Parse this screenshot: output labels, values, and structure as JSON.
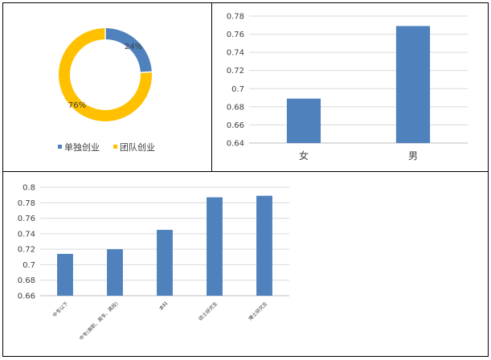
{
  "colors": {
    "blue": "#4F81BD",
    "yellow": "#FFC000",
    "grid": "#d9d9d9",
    "axis": "#bfbfbf",
    "text": "#404040"
  },
  "chart_data": [
    {
      "type": "pie",
      "variant": "donut",
      "categories": [
        "单独创业",
        "团队创业"
      ],
      "values": [
        24,
        76
      ],
      "labels": [
        "24%",
        "76%"
      ],
      "colors": [
        "#4F81BD",
        "#FFC000"
      ],
      "legend_position": "bottom"
    },
    {
      "type": "bar",
      "categories": [
        "女",
        "男"
      ],
      "values": [
        0.689,
        0.769
      ],
      "ylim": [
        0.64,
        0.78
      ],
      "yticks": [
        "0.64",
        "0.66",
        "0.68",
        "0.7",
        "0.72",
        "0.74",
        "0.76",
        "0.78"
      ],
      "grid": true,
      "color": "#4F81BD"
    },
    {
      "type": "bar",
      "categories": [
        "中专以下",
        "中专(高职、高专、高技)",
        "本科",
        "硕士研究生",
        "博士研究生"
      ],
      "values": [
        0.714,
        0.72,
        0.745,
        0.787,
        0.789
      ],
      "ylim": [
        0.66,
        0.8
      ],
      "yticks": [
        "0.66",
        "0.68",
        "0.7",
        "0.72",
        "0.74",
        "0.76",
        "0.78",
        "0.8"
      ],
      "grid": true,
      "color": "#4F81BD"
    }
  ]
}
